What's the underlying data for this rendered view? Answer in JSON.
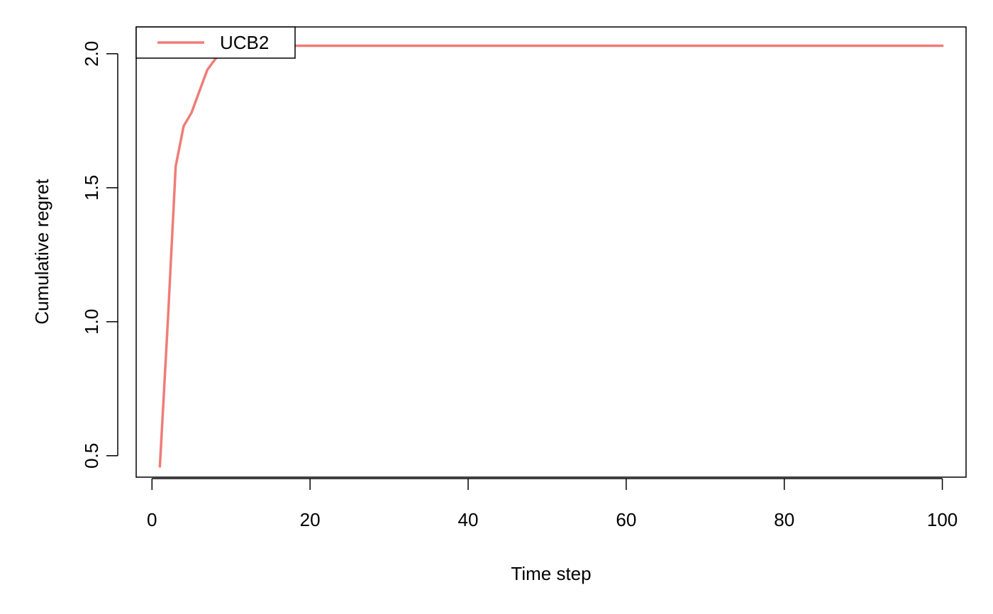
{
  "chart_data": {
    "type": "line",
    "title": "",
    "xlabel": "Time step",
    "ylabel": "Cumulative regret",
    "xlim": [
      -2.0,
      103.0
    ],
    "ylim": [
      0.42,
      2.1
    ],
    "xticks": [
      0,
      20,
      40,
      60,
      80,
      100
    ],
    "xtick_labels": [
      "0",
      "20",
      "40",
      "60",
      "80",
      "100"
    ],
    "yticks": [
      0.5,
      1.0,
      1.5,
      2.0
    ],
    "ytick_labels": [
      "0.5",
      "1.0",
      "1.5",
      "2.0"
    ],
    "grid": false,
    "legend_position": "top-left",
    "series": [
      {
        "name": "UCB2",
        "color": "#F07C77",
        "x": [
          1,
          2,
          3,
          4,
          5,
          6,
          7,
          8,
          9,
          10,
          20,
          30,
          40,
          50,
          60,
          70,
          80,
          90,
          100
        ],
        "y": [
          0.46,
          1.0,
          1.58,
          1.73,
          1.78,
          1.86,
          1.94,
          1.98,
          2.01,
          2.03,
          2.03,
          2.03,
          2.03,
          2.03,
          2.03,
          2.03,
          2.03,
          2.03,
          2.03
        ]
      }
    ]
  }
}
